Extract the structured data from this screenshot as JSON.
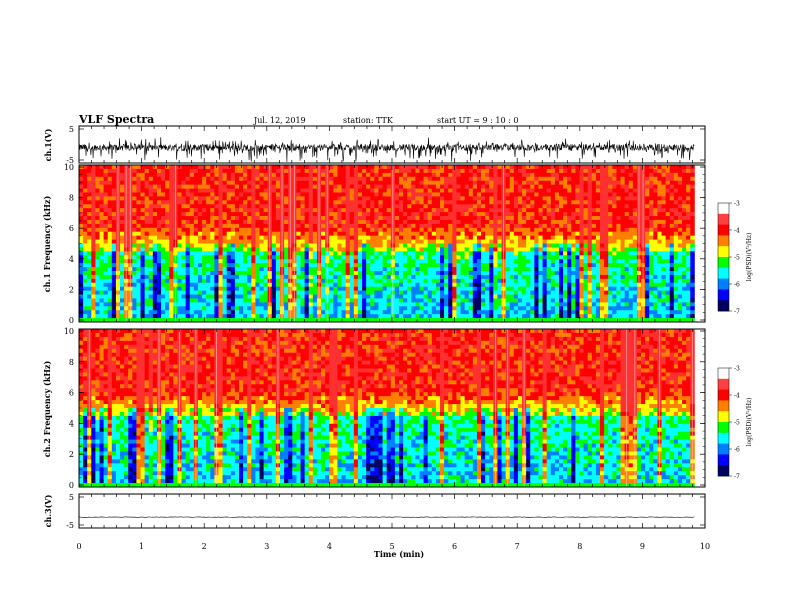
{
  "header": {
    "title": "VLF Spectra",
    "date": "Jul. 12, 2019",
    "station": "station: TTK",
    "start": "start  UT = 9 : 10 : 0"
  },
  "colorbar": {
    "label": "log(PSD)(V²/Hz)",
    "ticks": [
      "-3",
      "-4",
      "-5",
      "-6",
      "-7"
    ],
    "colors": [
      "#ffffff",
      "#ff0000",
      "#ff8000",
      "#ffff00",
      "#00ff00",
      "#00ffff",
      "#0080ff",
      "#0000ff",
      "#000060"
    ]
  },
  "chart_data": [
    {
      "type": "line",
      "name": "ch1-waveform",
      "ylabel": "ch.1(V)",
      "ytick_labels": [
        "5",
        "-5"
      ],
      "ylim": [
        -5,
        5
      ],
      "xlim": [
        0,
        10
      ],
      "x_extent": [
        0,
        9.83
      ],
      "mean": -0.8,
      "amplitude": [
        -3.5,
        2.0
      ],
      "color": "#000000"
    },
    {
      "type": "heatmap",
      "name": "ch1-spectrogram",
      "ylabel": "ch.1 Frequency (kHz)",
      "ytick_labels": [
        "0",
        "2",
        "4",
        "6",
        "8",
        "10"
      ],
      "ylim": [
        0,
        10
      ],
      "xlim": [
        0,
        10
      ],
      "x_extent": [
        0,
        9.83
      ],
      "zlim": [
        -7,
        -3
      ],
      "description_bands": [
        {
          "freq_khz": [
            0,
            4.5
          ],
          "level": "-6 to -5"
        },
        {
          "freq_khz": [
            4.5,
            6
          ],
          "level": "-5 to -4.5"
        },
        {
          "freq_khz": [
            6,
            10
          ],
          "level": "-4 to -3"
        }
      ]
    },
    {
      "type": "heatmap",
      "name": "ch2-spectrogram",
      "ylabel": "ch.2 Frequency (kHz)",
      "ytick_labels": [
        "0",
        "2",
        "4",
        "6",
        "8",
        "10"
      ],
      "ylim": [
        0,
        10
      ],
      "xlim": [
        0,
        10
      ],
      "x_extent": [
        0,
        9.83
      ],
      "zlim": [
        -7,
        -3
      ]
    },
    {
      "type": "line",
      "name": "ch3-waveform",
      "ylabel": "ch.3(V)",
      "ytick_labels": [
        "5",
        "-5"
      ],
      "ylim": [
        -5,
        5
      ],
      "xlim": [
        0,
        10
      ],
      "x_extent": [
        0,
        9.83
      ],
      "mean": -1.8,
      "color": "#000000"
    }
  ],
  "xaxis": {
    "label": "Time  (min)",
    "ticks": [
      "0",
      "1",
      "2",
      "3",
      "4",
      "5",
      "6",
      "7",
      "8",
      "9",
      "10"
    ]
  }
}
